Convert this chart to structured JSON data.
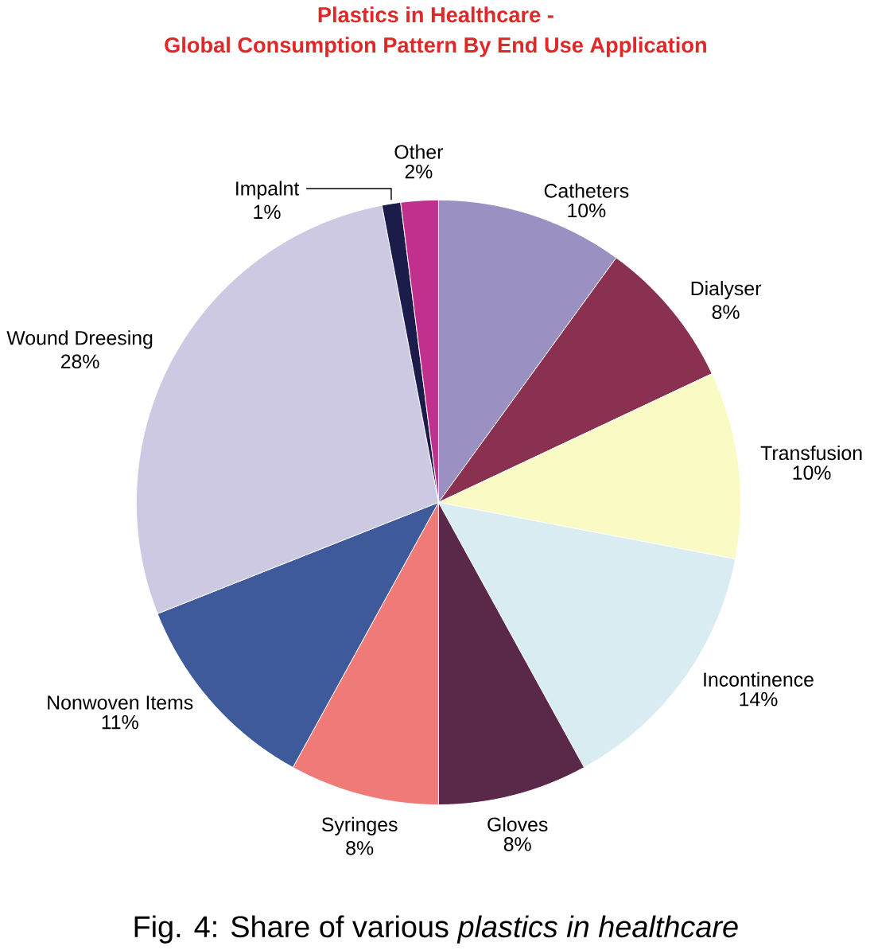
{
  "chart_data": {
    "type": "pie",
    "title": "Plastics in Healthcare -",
    "subtitle": "Global Consumption Pattern By End Use Application",
    "categories": [
      "Catheters",
      "Dialyser",
      "Transfusion",
      "Incontinence",
      "Gloves",
      "Syringes",
      "Nonwoven Items",
      "Wound Dreesing",
      "Impalnt",
      "Other"
    ],
    "values": [
      10,
      8,
      10,
      14,
      8,
      8,
      11,
      28,
      1,
      2
    ],
    "colors": [
      "#9a90c2",
      "#8a3050",
      "#fafac4",
      "#d8ecf2",
      "#5a2848",
      "#f07a78",
      "#3e5a9a",
      "#cdc9e2",
      "#1c1c4a",
      "#c0308c"
    ],
    "value_labels": [
      "10%",
      "8%",
      "10%",
      "14%",
      "8%",
      "8%",
      "11%",
      "28%",
      "1%",
      "2%"
    ],
    "annotations": [
      "Fig. 4: Share of various *plastics in healthcare*"
    ]
  }
}
